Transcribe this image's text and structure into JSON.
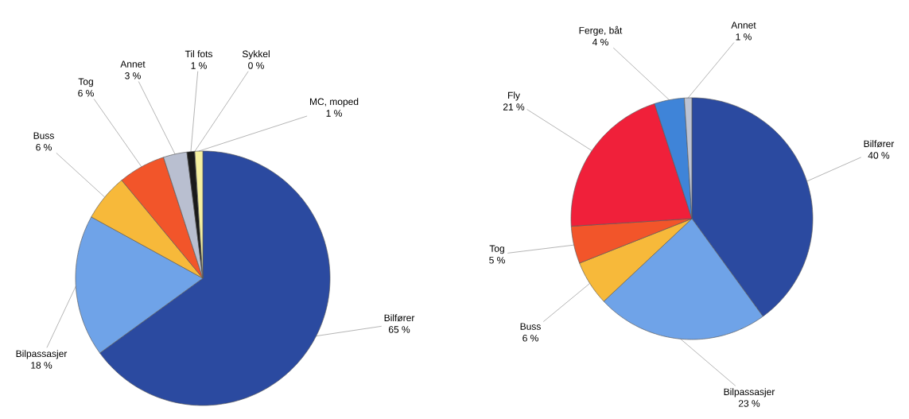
{
  "chart_data": [
    {
      "type": "pie",
      "categories": [
        "Bilfører",
        "Bilpassasjer",
        "Buss",
        "Tog",
        "Annet",
        "Til fots",
        "Sykkel",
        "MC, moped"
      ],
      "values": [
        65,
        18,
        6,
        6,
        3,
        1,
        0,
        1
      ],
      "value_labels": [
        "65 %",
        "18 %",
        "6 %",
        "6 %",
        "3 %",
        "1 %",
        "0 %",
        "1 %"
      ],
      "colors": [
        "#2b4aa0",
        "#6fa3e8",
        "#f7b93a",
        "#f2552a",
        "#b9bfd0",
        "#1a1a1a",
        "#e8e070",
        "#f5f0a0"
      ]
    },
    {
      "type": "pie",
      "categories": [
        "Bilfører",
        "Bilpassasjer",
        "Buss",
        "Tog",
        "Fly",
        "Ferge, båt",
        "Annet"
      ],
      "values": [
        40,
        23,
        6,
        5,
        21,
        4,
        1
      ],
      "value_labels": [
        "40 %",
        "23 %",
        "6 %",
        "5 %",
        "21 %",
        "4 %",
        "1 %"
      ],
      "colors": [
        "#2b4aa0",
        "#6fa3e8",
        "#f7b93a",
        "#f2552a",
        "#f0203a",
        "#3f84d8",
        "#bcc3d4"
      ]
    }
  ]
}
